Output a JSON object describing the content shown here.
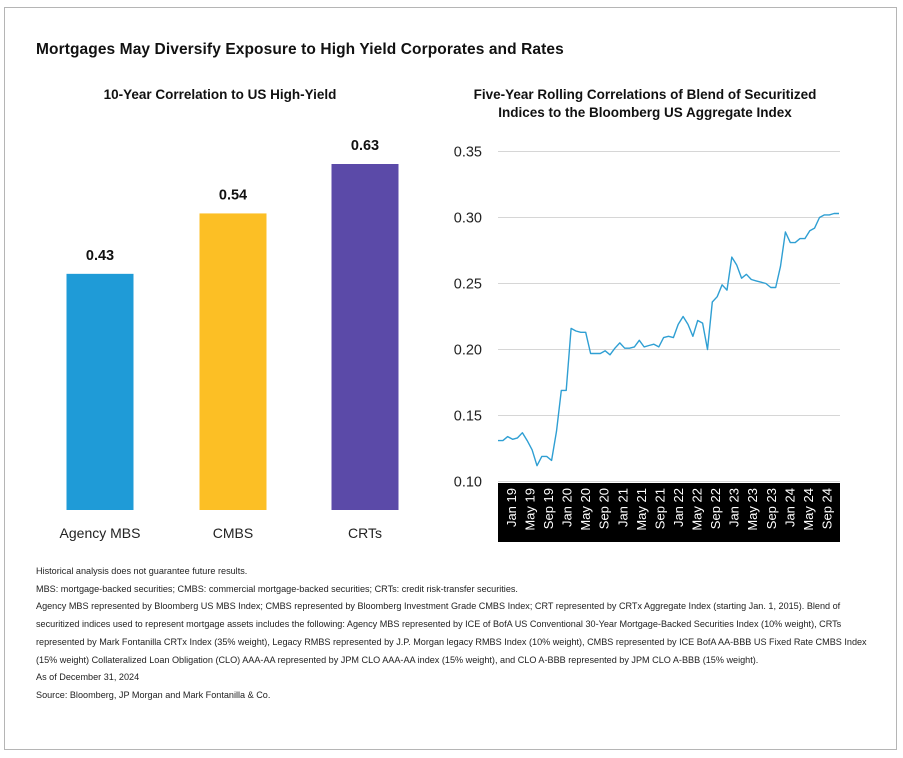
{
  "title": "Mortgages May Diversify Exposure to High Yield Corporates and Rates",
  "colors": {
    "agency_mbs": "#1f9bd7",
    "cmbs": "#fcbf25",
    "crts": "#5b4aa8",
    "line": "#2f9fd3",
    "axis_band": "#000000"
  },
  "chart_data": [
    {
      "type": "bar",
      "title": "10-Year Correlation to US High-Yield",
      "categories": [
        "Agency MBS",
        "CMBS",
        "CRTs"
      ],
      "values": [
        0.43,
        0.54,
        0.63
      ],
      "value_labels": [
        "0.43",
        "0.54",
        "0.63"
      ],
      "colors": [
        "#1f9bd7",
        "#fcbf25",
        "#5b4aa8"
      ],
      "ylim": [
        0,
        0.63
      ],
      "grid": false
    },
    {
      "type": "line",
      "title_lines": [
        "Five-Year Rolling Correlations of Blend of Securitized",
        "Indices to the Bloomberg US Aggregate Index"
      ],
      "ylim": [
        0.1,
        0.35
      ],
      "yticks": [
        0.35,
        0.3,
        0.25,
        0.2,
        0.15,
        0.1
      ],
      "ytick_labels": [
        "0.35",
        "0.30",
        "0.25",
        "0.20",
        "0.15",
        "0.10"
      ],
      "xtick_labels": [
        "Jan 19",
        "May 19",
        "Sep 19",
        "Jan 20",
        "May 20",
        "Sep 20",
        "Jan 21",
        "May 21",
        "Sep 21",
        "Jan 22",
        "May 22",
        "Sep 22",
        "Jan 23",
        "May 23",
        "Sep 23",
        "Jan 24",
        "May 24",
        "Sep 24"
      ],
      "grid": "horizontal",
      "series": [
        {
          "values": [
            0.131,
            0.131,
            0.134,
            0.132,
            0.133,
            0.137,
            0.131,
            0.124,
            0.112,
            0.119,
            0.119,
            0.116,
            0.138,
            0.169,
            0.169,
            0.216,
            0.214,
            0.213,
            0.213,
            0.197,
            0.197,
            0.197,
            0.199,
            0.196,
            0.201,
            0.205,
            0.201,
            0.201,
            0.202,
            0.207,
            0.202,
            0.203,
            0.204,
            0.202,
            0.209,
            0.21,
            0.209,
            0.219,
            0.225,
            0.219,
            0.21,
            0.222,
            0.22,
            0.2,
            0.236,
            0.24,
            0.249,
            0.245,
            0.27,
            0.264,
            0.254,
            0.257,
            0.253,
            0.252,
            0.251,
            0.25,
            0.247,
            0.247,
            0.263,
            0.289,
            0.281,
            0.281,
            0.284,
            0.284,
            0.29,
            0.292,
            0.3,
            0.302,
            0.302,
            0.303,
            0.303
          ]
        }
      ]
    }
  ],
  "footer": {
    "line1": "Historical analysis does not guarantee future results.",
    "line2": "MBS: mortgage-backed securities; CMBS: commercial mortgage-backed securities; CRTs: credit risk-transfer securities.",
    "line3": "Agency MBS represented by Bloomberg US MBS Index; CMBS represented by Bloomberg Investment Grade CMBS Index; CRT represented by CRTx Aggregate Index (starting Jan. 1, 2015). Blend of securitized indices used to represent mortgage assets includes the following: Agency MBS represented by ICE of BofA US Conventional 30-Year Mortgage-Backed Securities Index (10% weight), CRTs represented by Mark Fontanilla CRTx Index (35% weight), Legacy RMBS represented by J.P. Morgan legacy RMBS Index (10% weight), CMBS represented by ICE BofA AA-BBB US Fixed Rate CMBS Index (15% weight) Collateralized Loan Obligation (CLO) AAA-AA represented by JPM CLO AAA-AA index (15% weight), and CLO A-BBB represented by JPM CLO A-BBB (15% weight).",
    "line4": "As of December 31, 2024",
    "line5": "Source: Bloomberg, JP Morgan and Mark Fontanilla & Co."
  }
}
